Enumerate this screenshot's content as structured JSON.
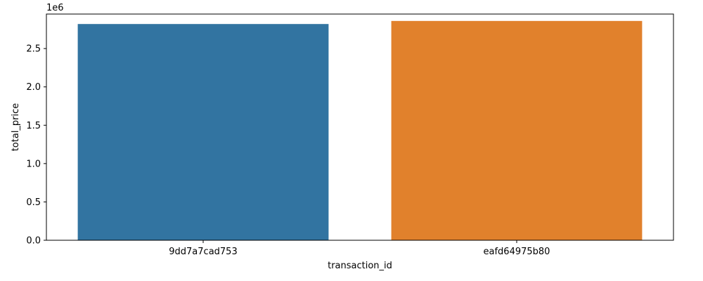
{
  "chart_data": {
    "type": "bar",
    "xlabel": "transaction_id",
    "ylabel": "total_price",
    "y_offset_label": "1e6",
    "categories": [
      "9dd7a7cad753",
      "eafd64975b80"
    ],
    "values": [
      2820000,
      2860000
    ],
    "colors": [
      "#3274a1",
      "#e1812c"
    ],
    "ylim": [
      0,
      2950000
    ],
    "y_ticks": [
      0,
      500000,
      1000000,
      1500000,
      2000000,
      2500000
    ],
    "y_tick_labels": [
      "0.0",
      "0.5",
      "1.0",
      "1.5",
      "2.0",
      "2.5"
    ],
    "grid": false,
    "legend": "none"
  }
}
